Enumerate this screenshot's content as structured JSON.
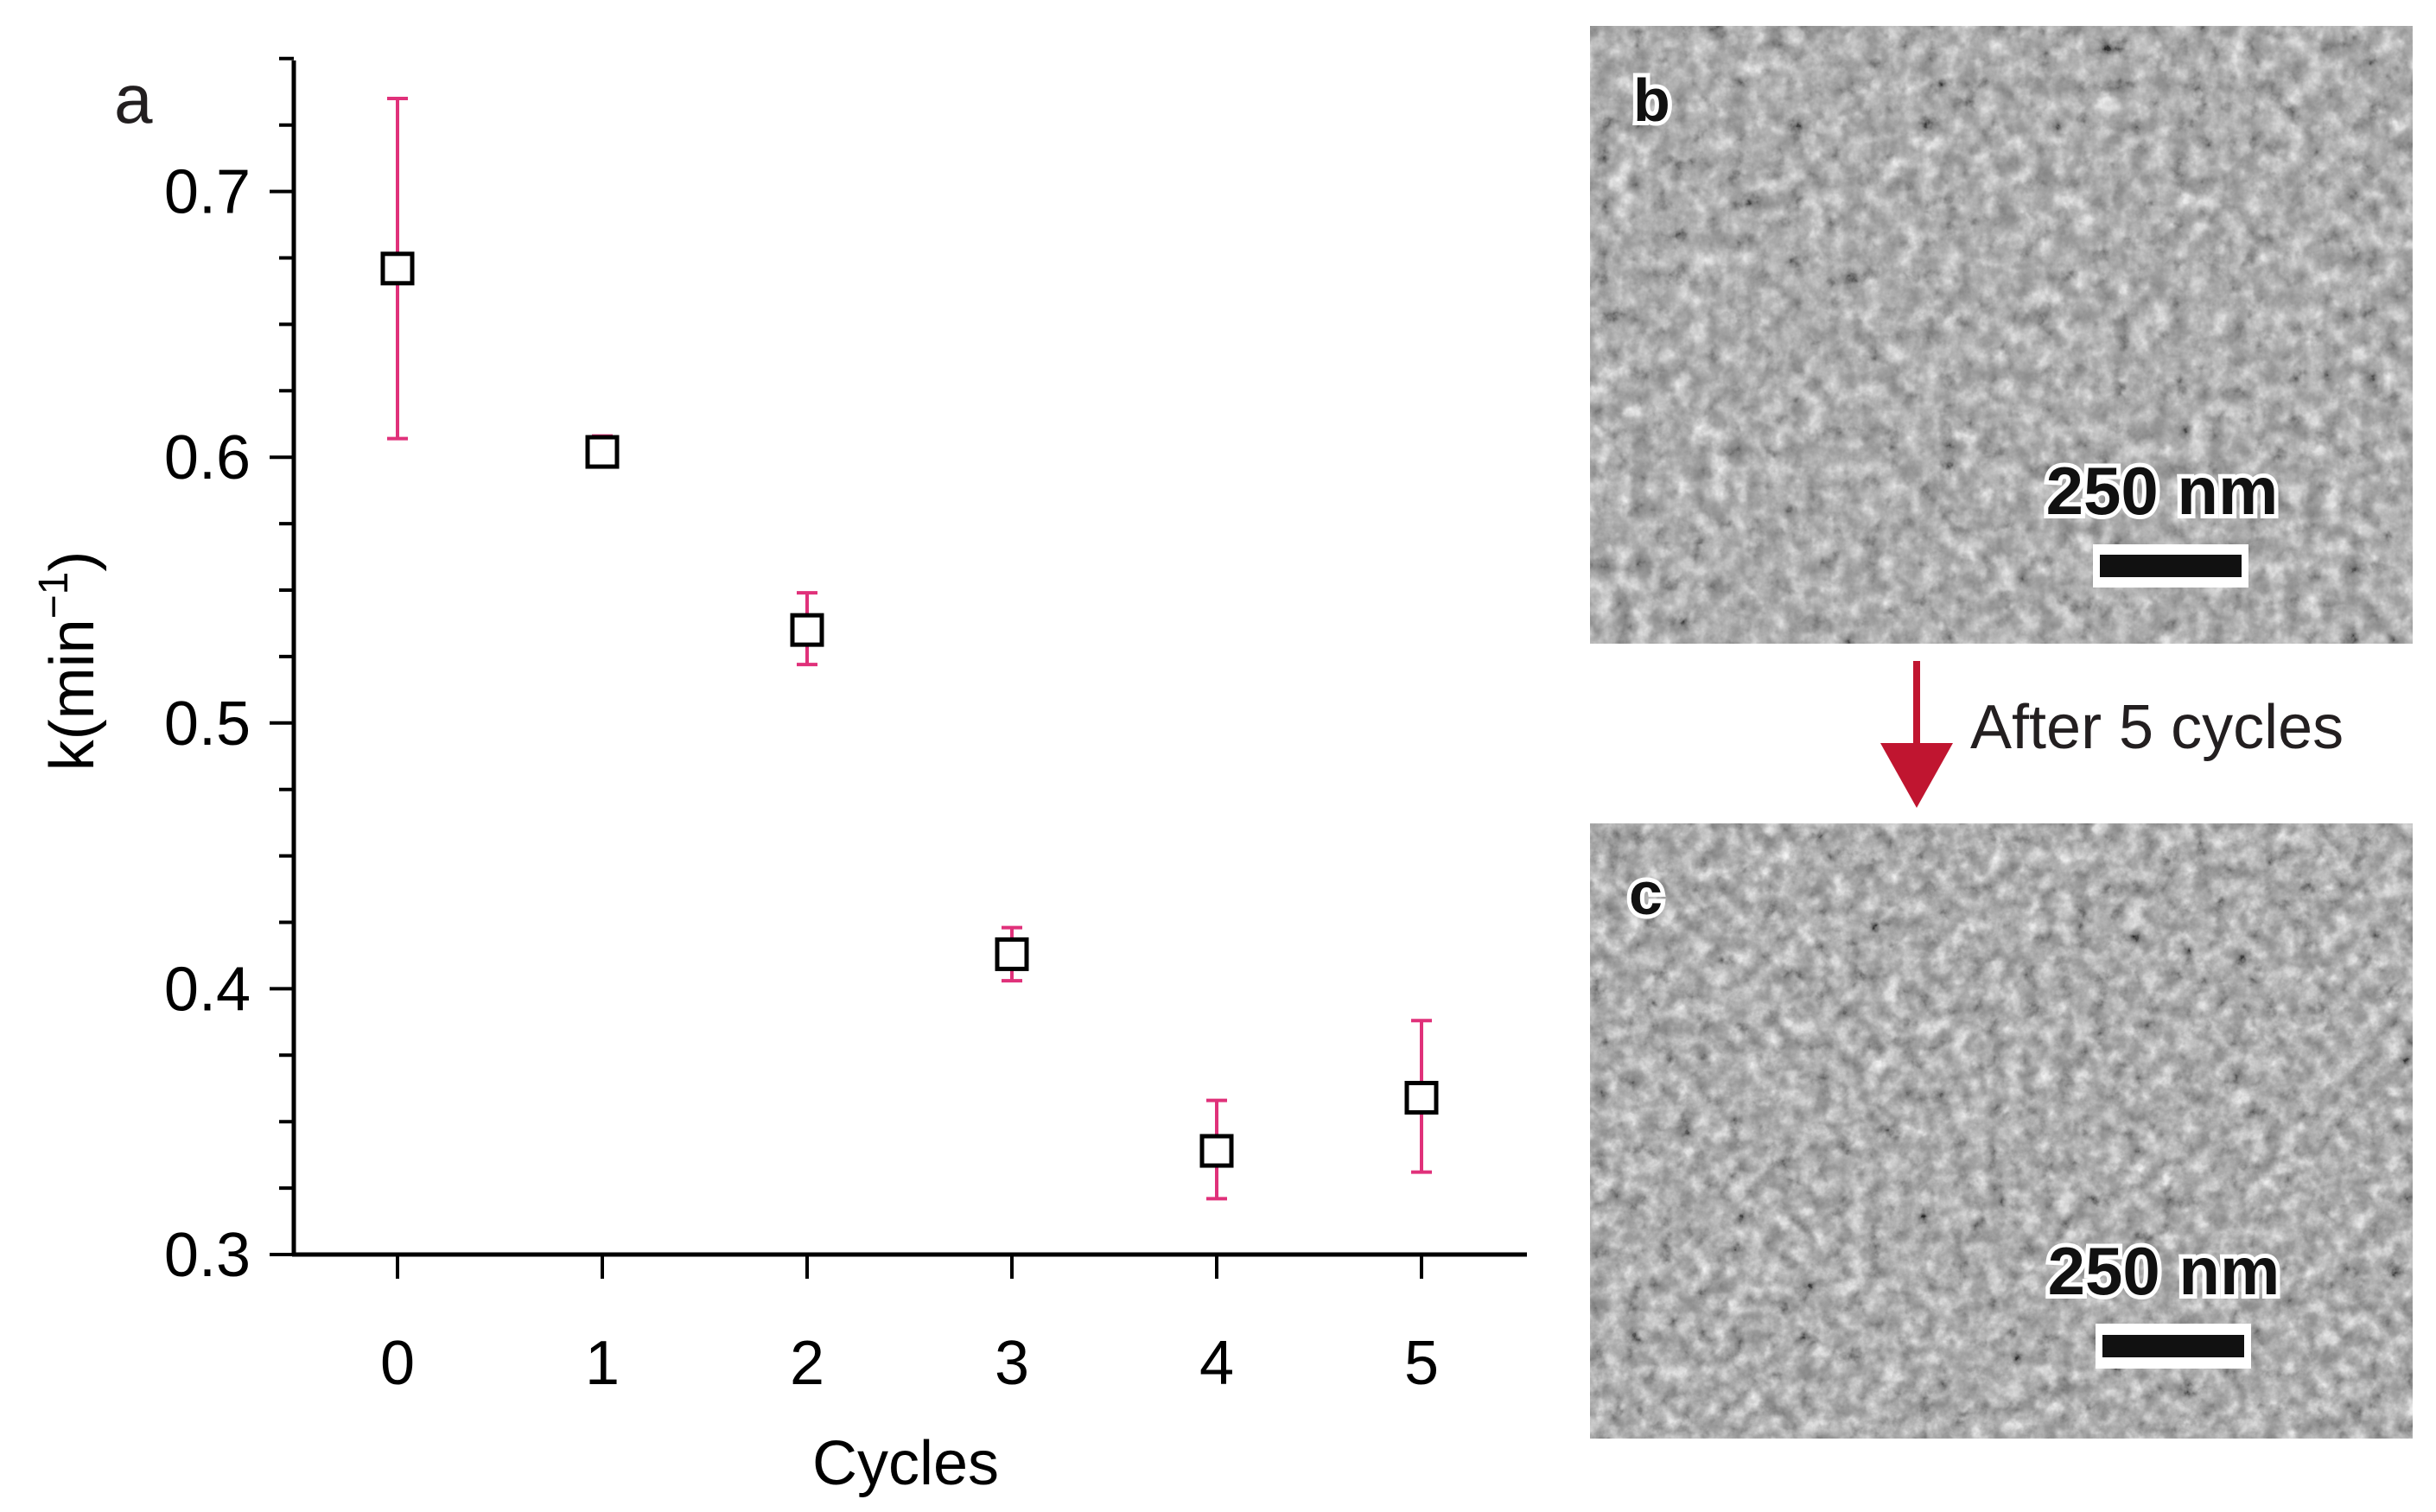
{
  "chart_data": {
    "type": "scatter",
    "panel_label": "a",
    "xlabel": "Cycles",
    "ylabel": "k(min",
    "ylabel_superscript": "−1",
    "ylabel_close": ")",
    "x_ticks": [
      "0",
      "1",
      "2",
      "3",
      "4",
      "5"
    ],
    "y_ticks": [
      "0.3",
      "0.4",
      "0.5",
      "0.6",
      "0.7"
    ],
    "xlim": [
      -0.5,
      5.5
    ],
    "ylim": [
      0.3,
      0.75
    ],
    "grid": false,
    "marker": "open-square",
    "marker_color": "#000000",
    "error_bar_color": "#e0317a",
    "series": [
      {
        "x": [
          0,
          1,
          2,
          3,
          4,
          5
        ],
        "y": [
          0.671,
          0.602,
          0.535,
          0.413,
          0.339,
          0.359
        ],
        "y_err_low": [
          0.607,
          0.597,
          0.522,
          0.403,
          0.321,
          0.331
        ],
        "y_err_high": [
          0.735,
          0.608,
          0.549,
          0.423,
          0.358,
          0.388
        ]
      }
    ]
  },
  "images": [
    {
      "panel_label": "b",
      "scale_bar_label": "250 nm"
    },
    {
      "panel_label": "c",
      "scale_bar_label": "250 nm"
    }
  ],
  "transition": {
    "label": "After 5 cycles",
    "arrow_color": "#c01530"
  }
}
